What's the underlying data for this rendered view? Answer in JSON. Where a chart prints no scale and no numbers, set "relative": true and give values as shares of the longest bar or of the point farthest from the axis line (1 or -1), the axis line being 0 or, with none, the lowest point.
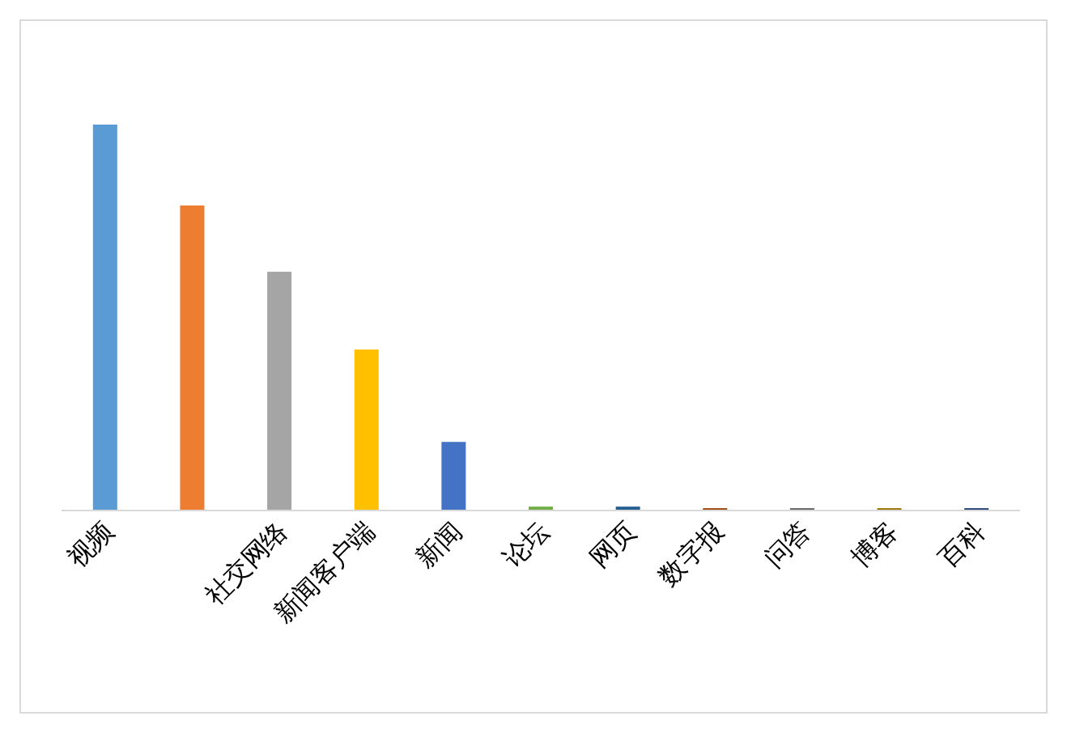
{
  "chart_data": {
    "type": "bar",
    "relative": true,
    "categories": [
      "视频",
      null,
      "社交网络",
      "新闻客户端",
      "新闻",
      "论坛",
      "网页",
      "数字报",
      "问答",
      "博客",
      "百科"
    ],
    "values": [
      1,
      0.79,
      0.618,
      0.416,
      0.176,
      0.008,
      0.008,
      0.004,
      0.004,
      0.004,
      0.004
    ],
    "colors": [
      "#5b9bd5",
      "#ed7d31",
      "#a5a5a5",
      "#ffc000",
      "#4472c4",
      "#70ad47",
      "#255e91",
      "#9e480e",
      "#636363",
      "#997300",
      "#264478"
    ]
  }
}
